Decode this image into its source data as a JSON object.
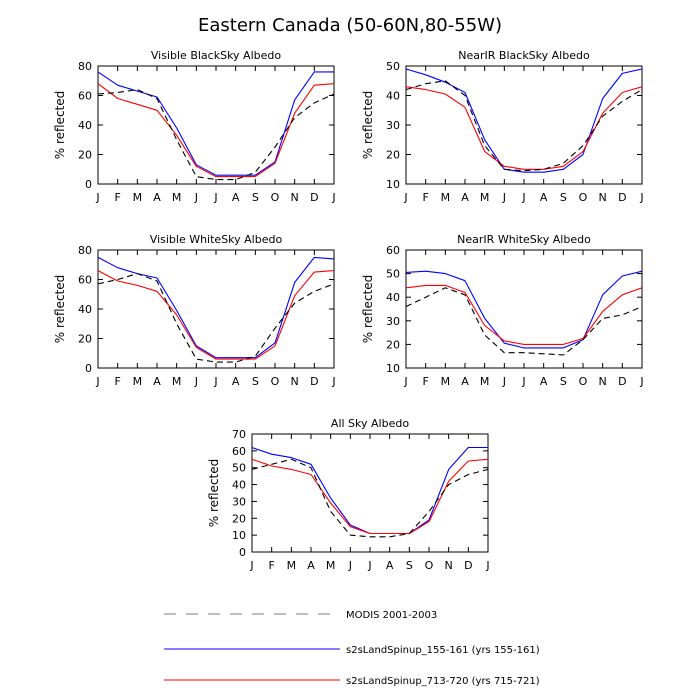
{
  "title": "Eastern Canada (50-60N,80-55W)",
  "colors": {
    "modis": "#000000",
    "run1": "#0000ff",
    "run2": "#ff0000",
    "legend_dash": "#aaaaaa"
  },
  "legend": [
    {
      "key": "modis",
      "label": "MODIS 2001-2003",
      "style": "dashed"
    },
    {
      "key": "run1",
      "label": "s2sLandSpinup_155-161 (yrs 155-161)",
      "style": "solid"
    },
    {
      "key": "run2",
      "label": "s2sLandSpinup_713-720 (yrs 715-721)",
      "style": "solid"
    }
  ],
  "chart_data": [
    {
      "id": "vis_black",
      "type": "line",
      "title": "Visible BlackSky Albedo",
      "ylabel": "% reflected",
      "categories": [
        "J",
        "F",
        "M",
        "A",
        "M",
        "J",
        "J",
        "A",
        "S",
        "O",
        "N",
        "D",
        "J"
      ],
      "ylim": [
        0,
        80
      ],
      "yticks": [
        0,
        20,
        40,
        60,
        80
      ],
      "series": [
        {
          "key": "modis",
          "name": "MODIS 2001-2003",
          "values": [
            61,
            62,
            64,
            58,
            30,
            5,
            3,
            3,
            8,
            25,
            45,
            55,
            61
          ]
        },
        {
          "key": "run1",
          "name": "s2sLandSpinup_155-161 (yrs 155-161)",
          "values": [
            76,
            67,
            63,
            59,
            38,
            13,
            6,
            6,
            6,
            15,
            57,
            76,
            76
          ]
        },
        {
          "key": "run2",
          "name": "s2sLandSpinup_713-720 (yrs 715-721)",
          "values": [
            68,
            58,
            54,
            50,
            33,
            12,
            5,
            5,
            5,
            14,
            48,
            67,
            68
          ]
        }
      ]
    },
    {
      "id": "nir_black",
      "type": "line",
      "title": "NearIR BlackSky Albedo",
      "ylabel": "% reflected",
      "categories": [
        "J",
        "F",
        "M",
        "A",
        "M",
        "J",
        "J",
        "A",
        "S",
        "O",
        "N",
        "D",
        "J"
      ],
      "ylim": [
        10,
        50
      ],
      "yticks": [
        10,
        20,
        30,
        40,
        50
      ],
      "series": [
        {
          "key": "modis",
          "name": "MODIS 2001-2003",
          "values": [
            42,
            44,
            45,
            40,
            23,
            15,
            14.5,
            15,
            17,
            23,
            33,
            38,
            42
          ]
        },
        {
          "key": "run1",
          "name": "s2sLandSpinup_155-161 (yrs 155-161)",
          "values": [
            49,
            47,
            44.5,
            41,
            25,
            15,
            14,
            14,
            15,
            20,
            39,
            47.5,
            49
          ]
        },
        {
          "key": "run2",
          "name": "s2sLandSpinup_713-720 (yrs 715-721)",
          "values": [
            43,
            42,
            40.5,
            36,
            21,
            16,
            15,
            15,
            16,
            21,
            34,
            41,
            43
          ]
        }
      ]
    },
    {
      "id": "vis_white",
      "type": "line",
      "title": "Visible WhiteSky Albedo",
      "ylabel": "% reflected",
      "categories": [
        "J",
        "F",
        "M",
        "A",
        "M",
        "J",
        "J",
        "A",
        "S",
        "O",
        "N",
        "D",
        "J"
      ],
      "ylim": [
        0,
        80
      ],
      "yticks": [
        0,
        20,
        40,
        60,
        80
      ],
      "series": [
        {
          "key": "modis",
          "name": "MODIS 2001-2003",
          "values": [
            57,
            60,
            64,
            59,
            30,
            6,
            4,
            4,
            8,
            27,
            44,
            52,
            57
          ]
        },
        {
          "key": "run1",
          "name": "s2sLandSpinup_155-161 (yrs 155-161)",
          "values": [
            75,
            68,
            64,
            61,
            39,
            15,
            7,
            7,
            7,
            17,
            58,
            75,
            74
          ]
        },
        {
          "key": "run2",
          "name": "s2sLandSpinup_713-720 (yrs 715-721)",
          "values": [
            66,
            59,
            56,
            52,
            36,
            14,
            6,
            6,
            6,
            15,
            49,
            65,
            66
          ]
        }
      ]
    },
    {
      "id": "nir_white",
      "type": "line",
      "title": "NearIR WhiteSky Albedo",
      "ylabel": "% reflected",
      "categories": [
        "J",
        "F",
        "M",
        "A",
        "M",
        "J",
        "J",
        "A",
        "S",
        "O",
        "N",
        "D",
        "J"
      ],
      "ylim": [
        10,
        60
      ],
      "yticks": [
        10,
        20,
        30,
        40,
        50,
        60
      ],
      "series": [
        {
          "key": "modis",
          "name": "MODIS 2001-2003",
          "values": [
            36,
            40,
            44,
            41,
            24,
            16.5,
            16.5,
            16,
            15.5,
            22,
            31,
            32.5,
            36
          ]
        },
        {
          "key": "run1",
          "name": "s2sLandSpinup_155-161 (yrs 155-161)",
          "values": [
            50.5,
            51,
            50,
            47,
            31,
            20.5,
            18.5,
            18.5,
            18.5,
            22,
            41,
            49,
            51
          ]
        },
        {
          "key": "run2",
          "name": "s2sLandSpinup_713-720 (yrs 715-721)",
          "values": [
            44,
            45,
            45,
            42,
            28,
            21.5,
            20,
            20,
            20,
            22.5,
            34,
            41,
            44
          ]
        }
      ]
    },
    {
      "id": "all_sky",
      "type": "line",
      "title": "All Sky Albedo",
      "ylabel": "% reflected",
      "categories": [
        "J",
        "F",
        "M",
        "A",
        "M",
        "J",
        "J",
        "A",
        "S",
        "O",
        "N",
        "D",
        "J"
      ],
      "ylim": [
        0,
        70
      ],
      "yticks": [
        0,
        10,
        20,
        30,
        40,
        50,
        60,
        70
      ],
      "series": [
        {
          "key": "modis",
          "name": "MODIS 2001-2003",
          "values": [
            49,
            52,
            55,
            50,
            24,
            10,
            9,
            9,
            11,
            24,
            40,
            46,
            49
          ]
        },
        {
          "key": "run1",
          "name": "s2sLandSpinup_155-161 (yrs 155-161)",
          "values": [
            62,
            58,
            56,
            52,
            32,
            16,
            11,
            11,
            11,
            19,
            49,
            62,
            62
          ]
        },
        {
          "key": "run2",
          "name": "s2sLandSpinup_713-720 (yrs 715-721)",
          "values": [
            55,
            51,
            49,
            46,
            29,
            15,
            11,
            11,
            11,
            18,
            42,
            54,
            55
          ]
        }
      ]
    }
  ]
}
